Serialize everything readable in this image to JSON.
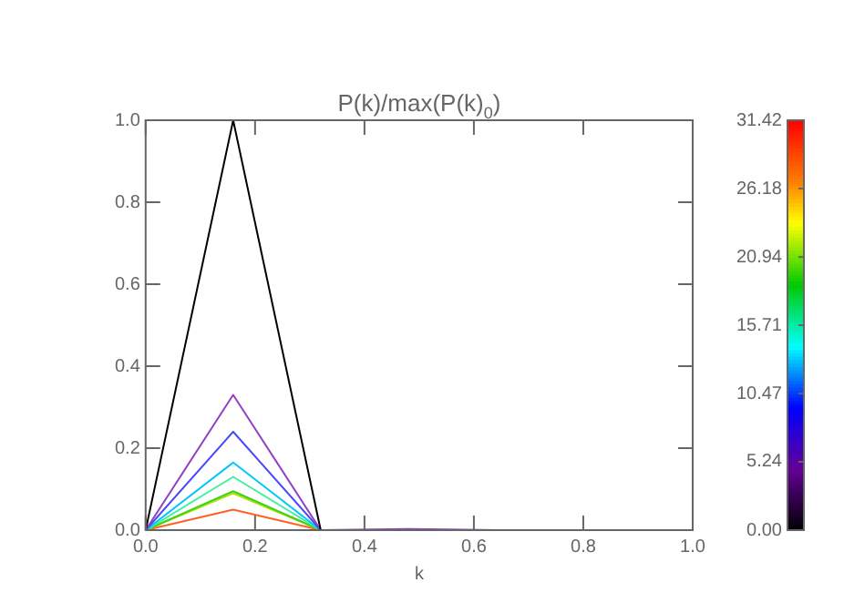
{
  "chart_data": {
    "type": "line",
    "title": "P(k)/max(P(k)$_{0}$)",
    "xlabel": "k",
    "x": [
      0,
      0.16,
      0.32,
      0.48,
      0.64,
      0.8,
      1.0
    ],
    "series": [
      {
        "color": "#000000",
        "values": [
          0,
          1.0,
          0,
          0,
          0,
          0,
          0
        ]
      },
      {
        "color": "#9040c0",
        "values": [
          0,
          0.33,
          0,
          0.003,
          0,
          0,
          0
        ]
      },
      {
        "color": "#4848ff",
        "values": [
          0,
          0.24,
          0,
          null,
          null,
          null,
          null
        ]
      },
      {
        "color": "#00c8ff",
        "values": [
          0,
          0.165,
          0,
          null,
          null,
          null,
          null
        ]
      },
      {
        "color": "#40f0a0",
        "values": [
          0,
          0.13,
          0,
          null,
          null,
          null,
          null
        ]
      },
      {
        "color": "#40d020",
        "values": [
          0,
          0.095,
          0,
          null,
          null,
          null,
          null
        ]
      },
      {
        "color": "#b0e000",
        "values": [
          0,
          0.09,
          0,
          null,
          null,
          null,
          null
        ]
      },
      {
        "color": "#ff6020",
        "values": [
          0,
          0.05,
          0,
          null,
          null,
          null,
          null
        ]
      }
    ],
    "xlim": [
      0,
      1.0
    ],
    "xticks": [
      {
        "value": 0,
        "label": "0.0"
      },
      0.2,
      0.4,
      0.6,
      0.8,
      {
        "value": 1,
        "label": "1.0"
      }
    ],
    "ylim": [
      0,
      1.0
    ],
    "yticks": [
      {
        "value": 0,
        "label": "0.0"
      },
      0.2,
      0.4,
      0.6,
      0.8,
      {
        "value": 1,
        "label": "1.0"
      }
    ],
    "clim": [
      0,
      31.42
    ],
    "cticks": [
      {
        "value": 0,
        "label": "0.00"
      },
      5.24,
      10.47,
      15.71,
      20.94,
      26.18,
      31.42
    ],
    "grid": false,
    "legend": false,
    "marker": "none",
    "line_style": "solid"
  }
}
